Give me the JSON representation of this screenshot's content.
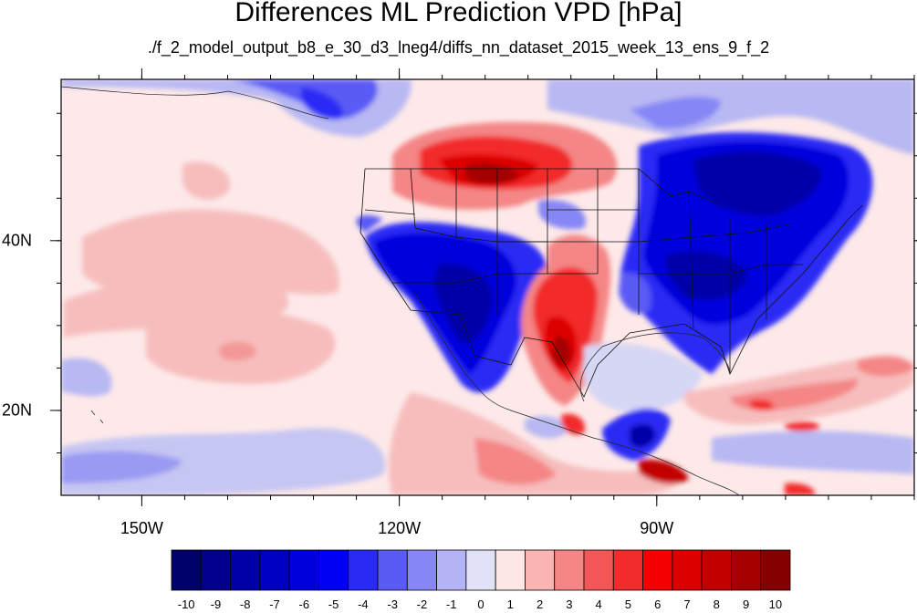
{
  "title": "Differences ML Prediction VPD [hPa]",
  "subtitle": "./f_2_model_output_b8_e_30_d3_lneg4/diffs_nn_dataset_2015_week_13_ens_9_f_2",
  "map": {
    "lon_range": [
      -159.4,
      -60
    ],
    "lat_range": [
      10,
      59
    ],
    "lon_ticks": [
      {
        "value": -150,
        "label": "150W"
      },
      {
        "value": -120,
        "label": "120W"
      },
      {
        "value": -90,
        "label": "90W"
      }
    ],
    "lat_ticks": [
      {
        "value": 40,
        "label": "40N"
      },
      {
        "value": 20,
        "label": "20N"
      }
    ],
    "background_value_color": "#fde9e9",
    "features": [
      "continental-us-state-borders",
      "coastlines",
      "vpd-difference-contours"
    ]
  },
  "colorbar": {
    "labels": [
      "-10",
      "-9",
      "-8",
      "-7",
      "-6",
      "-5",
      "-4",
      "-3",
      "-2",
      "-1",
      "0",
      "1",
      "2",
      "3",
      "4",
      "5",
      "6",
      "7",
      "8",
      "9",
      "10"
    ],
    "colors": [
      "#00006b",
      "#00008c",
      "#0000a8",
      "#0000c2",
      "#0000dd",
      "#0000f5",
      "#2a2af5",
      "#5a5af5",
      "#8686f5",
      "#b3b3f5",
      "#e2e2f7",
      "#fde6e6",
      "#fab4b4",
      "#f48686",
      "#f25656",
      "#f22c2c",
      "#f50000",
      "#dd0000",
      "#c20000",
      "#a40000",
      "#850000"
    ]
  }
}
